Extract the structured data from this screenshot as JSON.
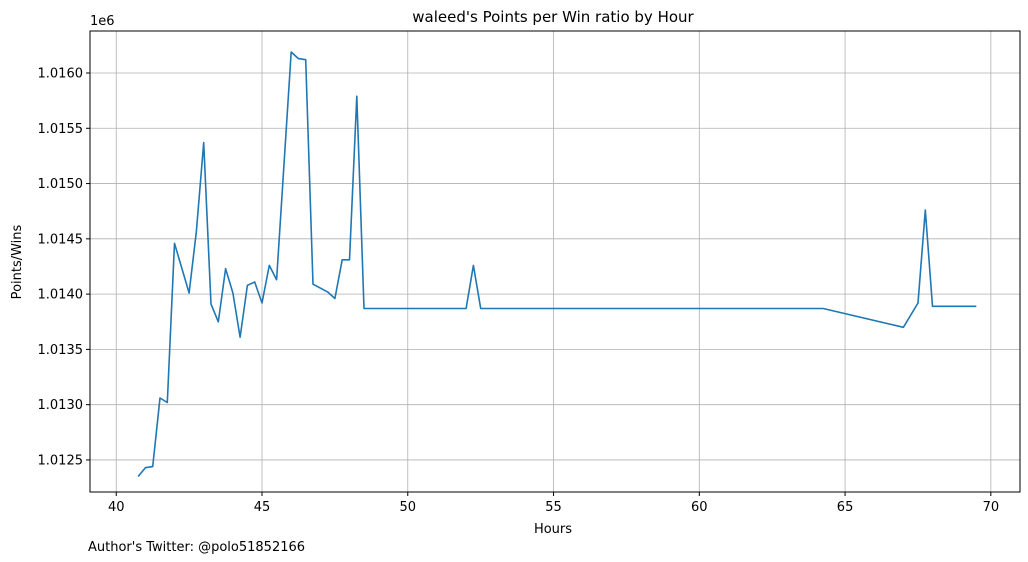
{
  "chart_data": {
    "type": "line",
    "title": "waleed's Points per Win ratio by Hour",
    "xlabel": "Hours",
    "ylabel": "Points/Wins",
    "y_offset_label": "1e6",
    "xlim": [
      39.1,
      71.0
    ],
    "ylim": [
      1.01221,
      1.01638
    ],
    "grid": true,
    "line_color": "#1f77b4",
    "x_ticks": [
      40,
      45,
      50,
      55,
      60,
      65,
      70
    ],
    "x_tick_labels": [
      "40",
      "45",
      "50",
      "55",
      "60",
      "65",
      "70"
    ],
    "y_ticks": [
      1.0125,
      1.013,
      1.0135,
      1.014,
      1.0145,
      1.015,
      1.0155,
      1.016
    ],
    "y_tick_labels": [
      "1.0125",
      "1.0130",
      "1.0135",
      "1.0140",
      "1.0145",
      "1.0150",
      "1.0155",
      "1.0160"
    ],
    "series": [
      {
        "x": [
          40.75,
          41.0,
          41.25,
          41.5,
          41.75,
          42.0,
          42.5,
          42.75,
          43.0,
          43.25,
          43.5,
          43.75,
          44.0,
          44.25,
          44.5,
          44.75,
          45.0,
          45.25,
          45.5,
          46.0,
          46.25,
          46.5,
          46.75,
          47.25,
          47.5,
          47.75,
          48.0,
          48.25,
          48.5,
          52.0,
          52.25,
          52.5,
          64.25,
          67.0,
          67.5,
          67.75,
          68.0,
          69.5
        ],
        "y": [
          1.01235,
          1.01243,
          1.01244,
          1.01306,
          1.01302,
          1.01446,
          1.01401,
          1.01457,
          1.01537,
          1.01391,
          1.01375,
          1.01423,
          1.01401,
          1.01361,
          1.01408,
          1.01411,
          1.01392,
          1.01426,
          1.01413,
          1.01619,
          1.01613,
          1.01612,
          1.01409,
          1.01402,
          1.01396,
          1.01431,
          1.01431,
          1.01579,
          1.01387,
          1.01387,
          1.01426,
          1.01387,
          1.01387,
          1.0137,
          1.01392,
          1.01476,
          1.01389,
          1.01389
        ]
      }
    ]
  },
  "footer": {
    "text": "Author's Twitter: @polo51852166"
  }
}
